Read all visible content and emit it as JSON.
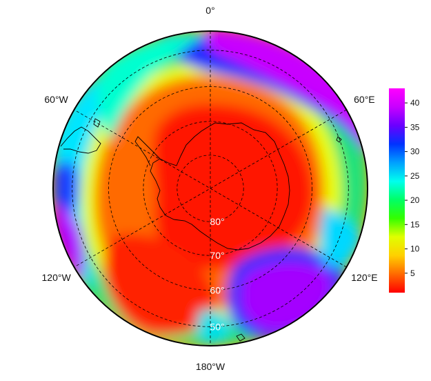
{
  "map": {
    "projection": "south-polar-stereographic",
    "longitude_labels": [
      {
        "lon": 0,
        "text": "0°"
      },
      {
        "lon": -60,
        "text": "60°W"
      },
      {
        "lon": 60,
        "text": "60°E"
      },
      {
        "lon": -120,
        "text": "120°W"
      },
      {
        "lon": 120,
        "text": "120°E"
      },
      {
        "lon": 180,
        "text": "180°W"
      }
    ],
    "latitude_labels": [
      {
        "lat": -80,
        "text": "80°"
      },
      {
        "lat": -70,
        "text": "70°"
      },
      {
        "lat": -60,
        "text": "60°"
      },
      {
        "lat": -50,
        "text": "50°"
      }
    ],
    "graticule": {
      "style": "dashed",
      "meridian_step_deg": 60,
      "parallels": [
        -80,
        -70,
        -60,
        -50
      ]
    },
    "colors": {
      "outline": "#000000",
      "graticule": "#000000",
      "coastline": "#000000"
    }
  },
  "colorbar": {
    "ticks": [
      5,
      10,
      15,
      20,
      25,
      30,
      35,
      40
    ],
    "min": 1,
    "max": 43,
    "palette": [
      "#ff0000",
      "#ff6a00",
      "#ffd000",
      "#e0ff00",
      "#33ff00",
      "#00ff66",
      "#00ffee",
      "#00a0ff",
      "#0033ff",
      "#6a00ff",
      "#c800ff",
      "#ff00ff"
    ]
  }
}
